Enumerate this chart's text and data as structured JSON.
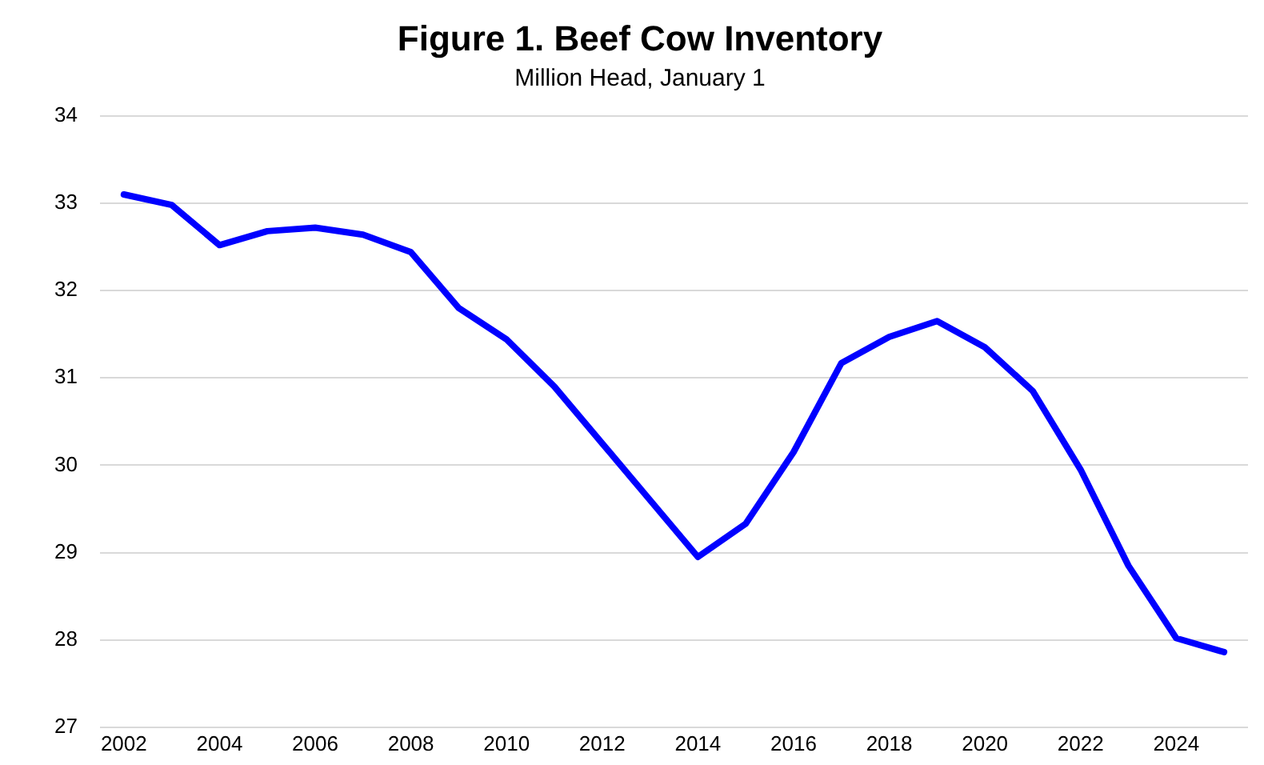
{
  "chart_data": {
    "type": "line",
    "title": "Figure 1. Beef Cow Inventory",
    "subtitle": "Million Head, January 1",
    "x": [
      2002,
      2003,
      2004,
      2005,
      2006,
      2007,
      2008,
      2009,
      2010,
      2011,
      2012,
      2013,
      2014,
      2015,
      2016,
      2017,
      2018,
      2019,
      2020,
      2021,
      2022,
      2023,
      2024,
      2025
    ],
    "series": [
      {
        "color": "#0000ff",
        "values": [
          33.1,
          32.98,
          32.52,
          32.68,
          32.72,
          32.64,
          32.44,
          31.8,
          31.44,
          30.9,
          30.25,
          29.6,
          28.95,
          29.33,
          30.15,
          31.17,
          31.47,
          31.65,
          31.35,
          30.85,
          29.95,
          28.85,
          28.02,
          27.86
        ]
      }
    ],
    "xlim": [
      2001.5,
      2025.5
    ],
    "xticks": [
      2002,
      2004,
      2006,
      2008,
      2010,
      2012,
      2014,
      2016,
      2018,
      2020,
      2022,
      2024
    ],
    "ylim": [
      27,
      34
    ],
    "yticks": [
      27,
      28,
      29,
      30,
      31,
      32,
      33,
      34
    ],
    "grid": "y",
    "legend": false,
    "marker": "none",
    "line_style": "solid"
  }
}
